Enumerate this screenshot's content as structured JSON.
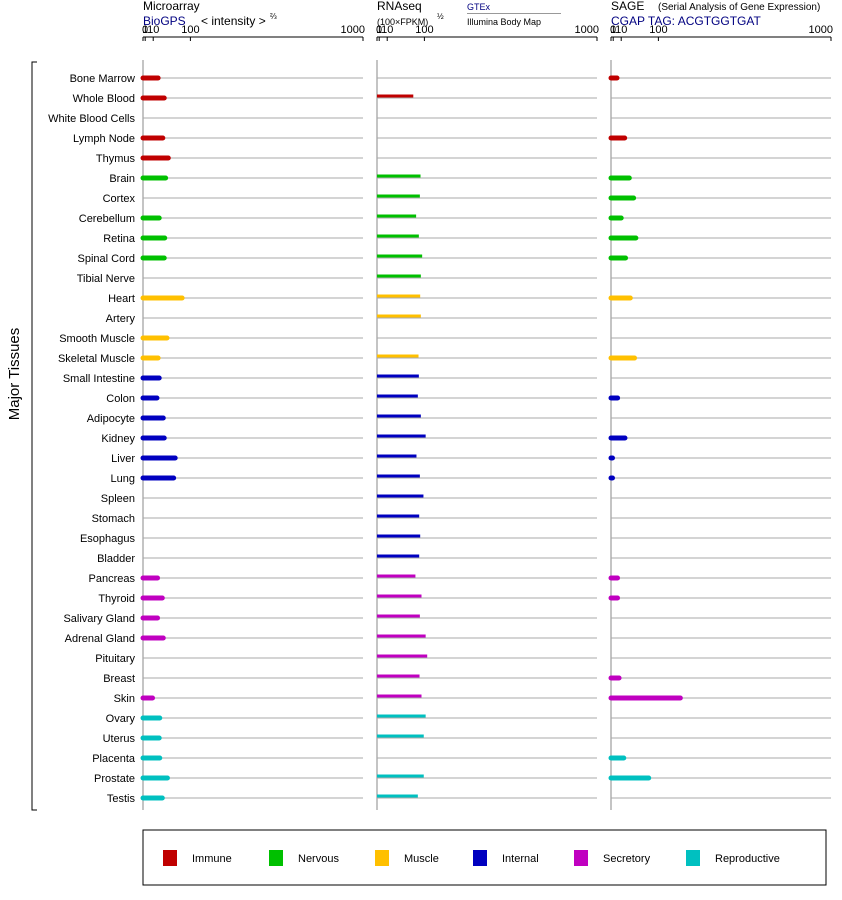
{
  "chart_data": {
    "type": "bar",
    "ylabel": "Major Tissues",
    "scale": "power 2/3 (tick values 0, 1, 10, 100, 1000)",
    "tissues": [
      "Bone Marrow",
      "Whole Blood",
      "White Blood Cells",
      "Lymph Node",
      "Thymus",
      "Brain",
      "Cortex",
      "Cerebellum",
      "Retina",
      "Spinal Cord",
      "Tibial Nerve",
      "Heart",
      "Artery",
      "Smooth Muscle",
      "Skeletal Muscle",
      "Small Intestine",
      "Colon",
      "Adipocyte",
      "Kidney",
      "Liver",
      "Lung",
      "Spleen",
      "Stomach",
      "Esophagus",
      "Bladder",
      "Pancreas",
      "Thyroid",
      "Salivary Gland",
      "Adrenal Gland",
      "Pituitary",
      "Breast",
      "Skin",
      "Ovary",
      "Uterus",
      "Placenta",
      "Prostate",
      "Testis"
    ],
    "groups": [
      "Immune",
      "Immune",
      "Immune",
      "Immune",
      "Immune",
      "Nervous",
      "Nervous",
      "Nervous",
      "Nervous",
      "Nervous",
      "Nervous",
      "Muscle",
      "Muscle",
      "Muscle",
      "Muscle",
      "Internal",
      "Internal",
      "Internal",
      "Internal",
      "Internal",
      "Internal",
      "Internal",
      "Internal",
      "Internal",
      "Internal",
      "Secretory",
      "Secretory",
      "Secretory",
      "Secretory",
      "Secretory",
      "Secretory",
      "Secretory",
      "Reproductive",
      "Reproductive",
      "Reproductive",
      "Reproductive",
      "Reproductive"
    ],
    "panels": [
      {
        "title": "Microarray",
        "subtitle_source": "BioGPS",
        "subtitle_text": "< intensity >",
        "subtitle_exp": "⅔",
        "ticks": [
          "0",
          "1",
          "10",
          "100",
          "1000"
        ],
        "tick_values": [
          0,
          1,
          10,
          100,
          1000
        ],
        "line_width": 5,
        "values": [
          18,
          30,
          null,
          27,
          39,
          33,
          null,
          20,
          31,
          30,
          null,
          75,
          null,
          36,
          18,
          20,
          16,
          28,
          30,
          56,
          52,
          null,
          null,
          null,
          null,
          17,
          26,
          17,
          28,
          null,
          null,
          9,
          21,
          20,
          21,
          37,
          26
        ]
      },
      {
        "title": "RNAseq",
        "subtitle_text": "(100×FPKM)",
        "subtitle_exp": "½",
        "legend_gtex": "GTEx",
        "legend_ibm": "Illumina Body Map",
        "ticks": [
          "0",
          "1",
          "10",
          "100",
          "1000"
        ],
        "tick_values": [
          0,
          1,
          10,
          100,
          1000
        ],
        "line_width": 3,
        "values": [
          null,
          67,
          null,
          null,
          null,
          88,
          86,
          75,
          83,
          93,
          89,
          87,
          89,
          null,
          82,
          83,
          80,
          89,
          104,
          76,
          86,
          97,
          84,
          87,
          84,
          73,
          91,
          86,
          104,
          109,
          85,
          91,
          104,
          98,
          null,
          98,
          80
        ]
      },
      {
        "title": "SAGE",
        "subtitle_note": "(Serial Analysis of Gene Expression)",
        "subtitle_source": "CGAP TAG: ACGTGGTGAT",
        "ticks": [
          "0",
          "1",
          "10",
          "100",
          "1000"
        ],
        "tick_values": [
          0,
          1,
          10,
          100,
          1000
        ],
        "line_width": 5,
        "values": [
          4.5,
          null,
          null,
          15.5,
          null,
          24,
          33,
          10,
          38,
          17,
          null,
          26,
          null,
          null,
          35,
          null,
          5.2,
          null,
          16,
          0.05,
          0.05,
          null,
          null,
          null,
          null,
          5.1,
          5.1,
          null,
          null,
          null,
          7,
          177,
          null,
          null,
          14,
          71,
          null
        ]
      }
    ],
    "legend": [
      {
        "name": "Immune",
        "color": "#c00000"
      },
      {
        "name": "Nervous",
        "color": "#00c000"
      },
      {
        "name": "Muscle",
        "color": "#ffc000"
      },
      {
        "name": "Internal",
        "color": "#0000c0"
      },
      {
        "name": "Secretory",
        "color": "#c000c0"
      },
      {
        "name": "Reproductive",
        "color": "#00c0c0"
      }
    ],
    "colors": {
      "Immune": "#c00000",
      "Nervous": "#00c000",
      "Muscle": "#ffc000",
      "Internal": "#0000c0",
      "Secretory": "#c000c0",
      "Reproductive": "#00c0c0",
      "source_text": "#000080"
    }
  }
}
